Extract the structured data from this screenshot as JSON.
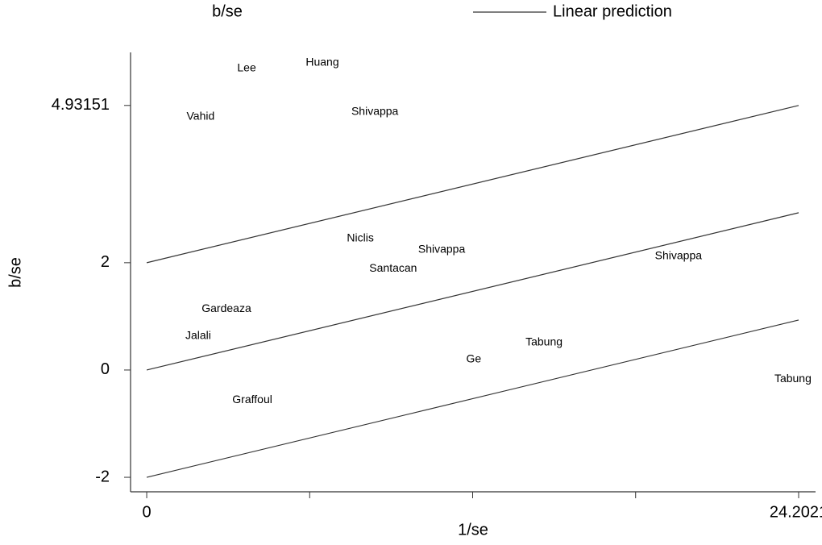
{
  "chart_data": {
    "type": "galbraith",
    "x_label": "1/se",
    "y_label": "b/se",
    "xlim": [
      -0.6,
      24.83
    ],
    "ylim": [
      -2.27,
      5.92
    ],
    "xticks": [
      0,
      24.2021
    ],
    "minor_xticks": [
      6.05,
      12.1,
      18.15
    ],
    "yticks": [
      -2,
      0,
      2,
      4.93151
    ],
    "series": [
      {
        "name": "b/se",
        "type": "label",
        "color": "#000000",
        "labels": [
          "Lee",
          "Huang",
          "Vahid",
          "Shivappa",
          "Niclis",
          "Shivappa",
          "Santacan",
          "Shivappa",
          "Gardeaza",
          "Jalali",
          "Tabung",
          "Ge",
          "Tabung",
          "Graffoul"
        ],
        "x": [
          3.71,
          6.52,
          2.0,
          8.47,
          7.93,
          10.95,
          9.15,
          19.74,
          2.96,
          1.91,
          14.75,
          12.14,
          23.99,
          3.92
        ],
        "values": [
          5.62,
          5.73,
          4.72,
          4.81,
          2.45,
          2.24,
          1.89,
          2.12,
          1.14,
          0.63,
          0.51,
          0.2,
          -0.17,
          -0.56
        ]
      },
      {
        "name": "Linear prediction",
        "type": "line",
        "color": "#333333",
        "x": [
          0,
          24.2021
        ],
        "values": [
          0,
          2.93151
        ]
      }
    ],
    "band_lines": [
      {
        "x": [
          0,
          24.2021
        ],
        "values": [
          2,
          4.93151
        ]
      },
      {
        "x": [
          0,
          24.2021
        ],
        "values": [
          -2,
          0.93151
        ]
      }
    ]
  }
}
